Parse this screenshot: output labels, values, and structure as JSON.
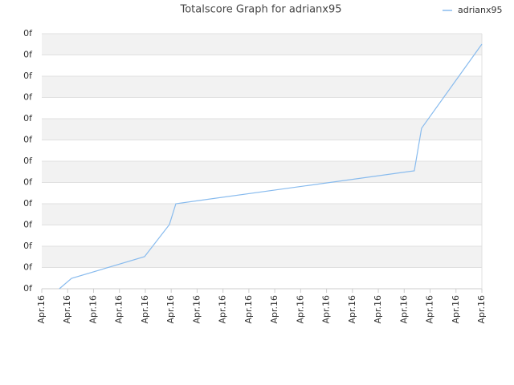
{
  "chart_data": {
    "type": "line",
    "title": "Totalscore Graph for adrianx95",
    "x": [
      0.68,
      1.15,
      3.97,
      4.93,
      5.18,
      14.39,
      14.67,
      17
    ],
    "series": [
      {
        "name": "adrianx95",
        "color": "#88bbee",
        "values": [
          0,
          0.49,
          1.51,
          3.02,
          4.0,
          5.55,
          7.55,
          11.51
        ]
      }
    ],
    "xlim": [
      0,
      17
    ],
    "xticks": [
      {
        "value": 0,
        "label": "Apr.16"
      },
      {
        "value": 1,
        "label": "Apr.16"
      },
      {
        "value": 2,
        "label": "Apr.16"
      },
      {
        "value": 3,
        "label": "Apr.16"
      },
      {
        "value": 4,
        "label": "Apr.16"
      },
      {
        "value": 5,
        "label": "Apr.16"
      },
      {
        "value": 6,
        "label": "Apr.16"
      },
      {
        "value": 7,
        "label": "Apr.16"
      },
      {
        "value": 8,
        "label": "Apr.16"
      },
      {
        "value": 9,
        "label": "Apr.16"
      },
      {
        "value": 10,
        "label": "Apr.16"
      },
      {
        "value": 11,
        "label": "Apr.16"
      },
      {
        "value": 12,
        "label": "Apr.16"
      },
      {
        "value": 13,
        "label": "Apr.16"
      },
      {
        "value": 14,
        "label": "Apr.16"
      },
      {
        "value": 15,
        "label": "Apr.16"
      },
      {
        "value": 16,
        "label": "Apr.16"
      },
      {
        "value": 17,
        "label": "Apr.16"
      }
    ],
    "ylim": [
      0,
      12
    ],
    "yticks": [
      {
        "value": 0,
        "label": "0f"
      },
      {
        "value": 1,
        "label": "0f"
      },
      {
        "value": 2,
        "label": "0f"
      },
      {
        "value": 3,
        "label": "0f"
      },
      {
        "value": 4,
        "label": "0f"
      },
      {
        "value": 5,
        "label": "0f"
      },
      {
        "value": 6,
        "label": "0f"
      },
      {
        "value": 7,
        "label": "0f"
      },
      {
        "value": 8,
        "label": "0f"
      },
      {
        "value": 9,
        "label": "0f"
      },
      {
        "value": 10,
        "label": "0f"
      },
      {
        "value": 11,
        "label": "0f"
      },
      {
        "value": 12,
        "label": "0f"
      }
    ],
    "grid": true,
    "legend": "top-right"
  }
}
